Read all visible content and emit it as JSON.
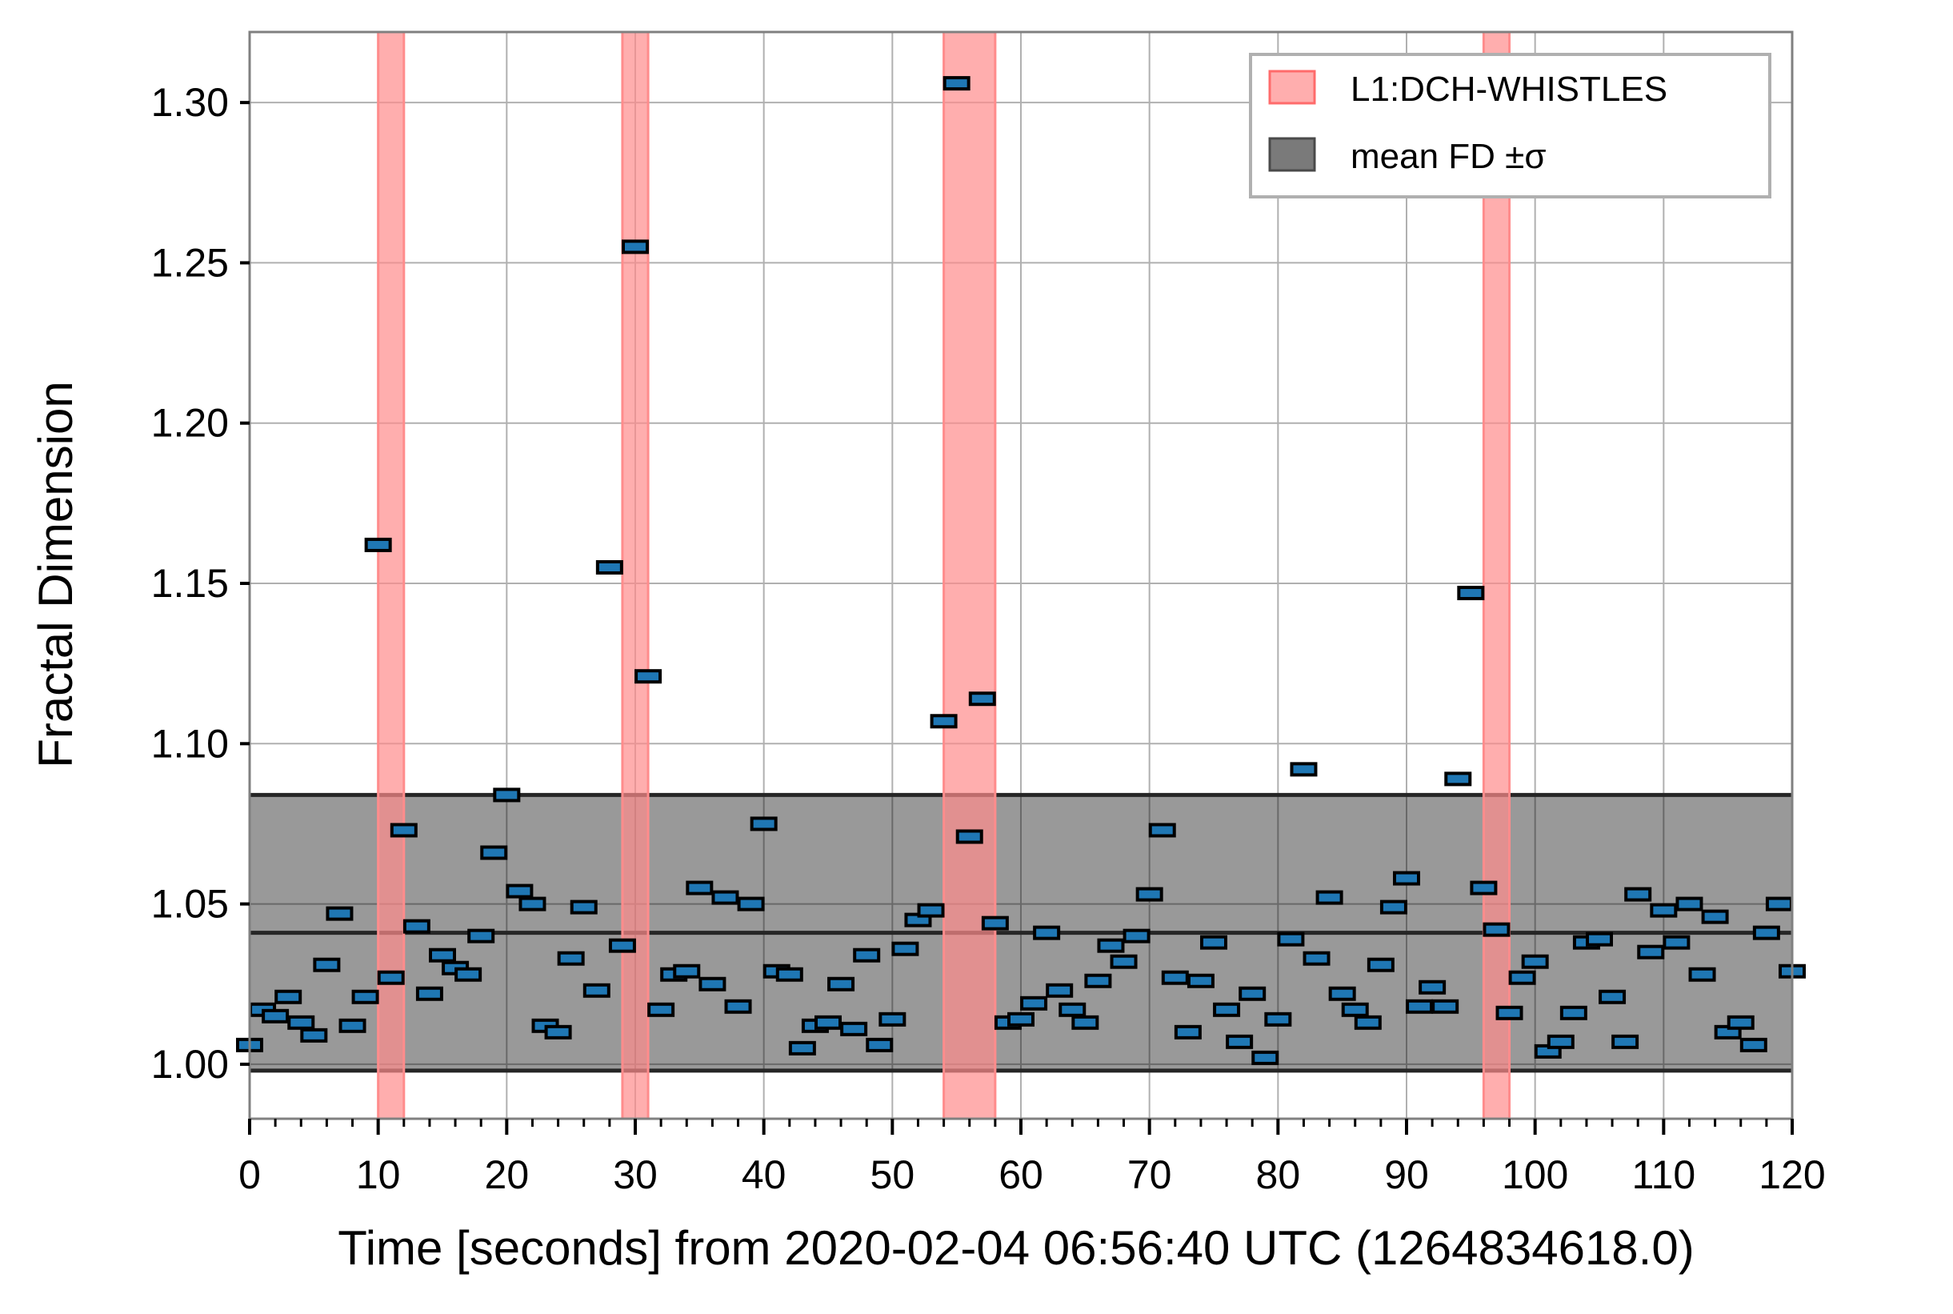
{
  "chart_data": {
    "type": "scatter",
    "xlabel": "Time [seconds] from 2020-02-04 06:56:40 UTC (1264834618.0)",
    "ylabel": "Fractal Dimension",
    "xlim": [
      0,
      120
    ],
    "ylim": [
      0.983,
      1.322
    ],
    "x_ticks": [
      0,
      10,
      20,
      30,
      40,
      50,
      60,
      70,
      80,
      90,
      100,
      110,
      120
    ],
    "x_tick_labels": [
      "0",
      "10",
      "20",
      "30",
      "40",
      "50",
      "60",
      "70",
      "80",
      "90",
      "100",
      "110",
      "120"
    ],
    "y_ticks": [
      1.0,
      1.05,
      1.1,
      1.15,
      1.2,
      1.25,
      1.3
    ],
    "y_tick_labels": [
      "1.00",
      "1.05",
      "1.10",
      "1.15",
      "1.20",
      "1.25",
      "1.30"
    ],
    "grid": true,
    "legend_position": "top-right",
    "legend": [
      {
        "label": "L1:DCH-WHISTLES",
        "color": "#ff8c8c"
      },
      {
        "label": "mean FD ±σ",
        "color": "#7a7a7a"
      }
    ],
    "whistle_segments": [
      [
        10,
        12
      ],
      [
        29,
        31
      ],
      [
        54,
        58
      ],
      [
        96,
        98
      ]
    ],
    "mean_fd": 1.041,
    "mean_fd_lower": 0.998,
    "mean_fd_upper": 1.084,
    "marker_color": "#1f77b4",
    "series": [
      {
        "x": [
          0,
          1,
          2,
          3,
          4,
          5,
          6,
          7,
          8,
          9,
          10,
          11,
          12,
          13,
          14,
          15,
          16,
          17,
          18,
          19,
          20,
          21,
          22,
          23,
          24,
          25,
          26,
          27,
          28,
          29,
          30,
          31,
          32,
          33,
          34,
          35,
          36,
          37,
          38,
          39,
          40,
          41,
          42,
          43,
          44,
          45,
          46,
          47,
          48,
          49,
          50,
          51,
          52,
          53,
          54,
          55,
          56,
          57,
          58,
          59,
          60,
          61,
          62,
          63,
          64,
          65,
          66,
          67,
          68,
          69,
          70,
          71,
          72,
          73,
          74,
          75,
          76,
          77,
          78,
          79,
          80,
          81,
          82,
          83,
          84,
          85,
          86,
          87,
          88,
          89,
          90,
          91,
          92,
          93,
          94,
          95,
          96,
          97,
          98,
          99,
          100,
          101,
          102,
          103,
          104,
          105,
          106,
          107,
          108,
          109,
          110,
          111,
          112,
          113,
          114,
          115,
          116,
          117,
          118,
          119,
          120
        ],
        "y": [
          1.006,
          1.017,
          1.015,
          1.021,
          1.013,
          1.009,
          1.031,
          1.047,
          1.012,
          1.021,
          1.162,
          1.027,
          1.073,
          1.043,
          1.022,
          1.034,
          1.03,
          1.028,
          1.04,
          1.066,
          1.084,
          1.054,
          1.05,
          1.012,
          1.01,
          1.033,
          1.049,
          1.023,
          1.155,
          1.037,
          1.255,
          1.121,
          1.017,
          1.028,
          1.029,
          1.055,
          1.025,
          1.052,
          1.018,
          1.05,
          1.075,
          1.029,
          1.028,
          1.005,
          1.012,
          1.013,
          1.025,
          1.011,
          1.034,
          1.006,
          1.014,
          1.036,
          1.045,
          1.048,
          1.107,
          1.306,
          1.071,
          1.114,
          1.044,
          1.013,
          1.014,
          1.019,
          1.041,
          1.023,
          1.017,
          1.013,
          1.026,
          1.037,
          1.032,
          1.04,
          1.053,
          1.073,
          1.027,
          1.01,
          1.026,
          1.038,
          1.017,
          1.007,
          1.022,
          1.002,
          1.014,
          1.039,
          1.092,
          1.033,
          1.052,
          1.022,
          1.017,
          1.013,
          1.031,
          1.049,
          1.058,
          1.018,
          1.024,
          1.018,
          1.089,
          1.147,
          1.055,
          1.042,
          1.016,
          1.027,
          1.032,
          1.004,
          1.007,
          1.016,
          1.038,
          1.039,
          1.021,
          1.007,
          1.053,
          1.035,
          1.048,
          1.038,
          1.05,
          1.028,
          1.046,
          1.01,
          1.013,
          1.006,
          1.041,
          1.05,
          1.029
        ]
      }
    ]
  }
}
